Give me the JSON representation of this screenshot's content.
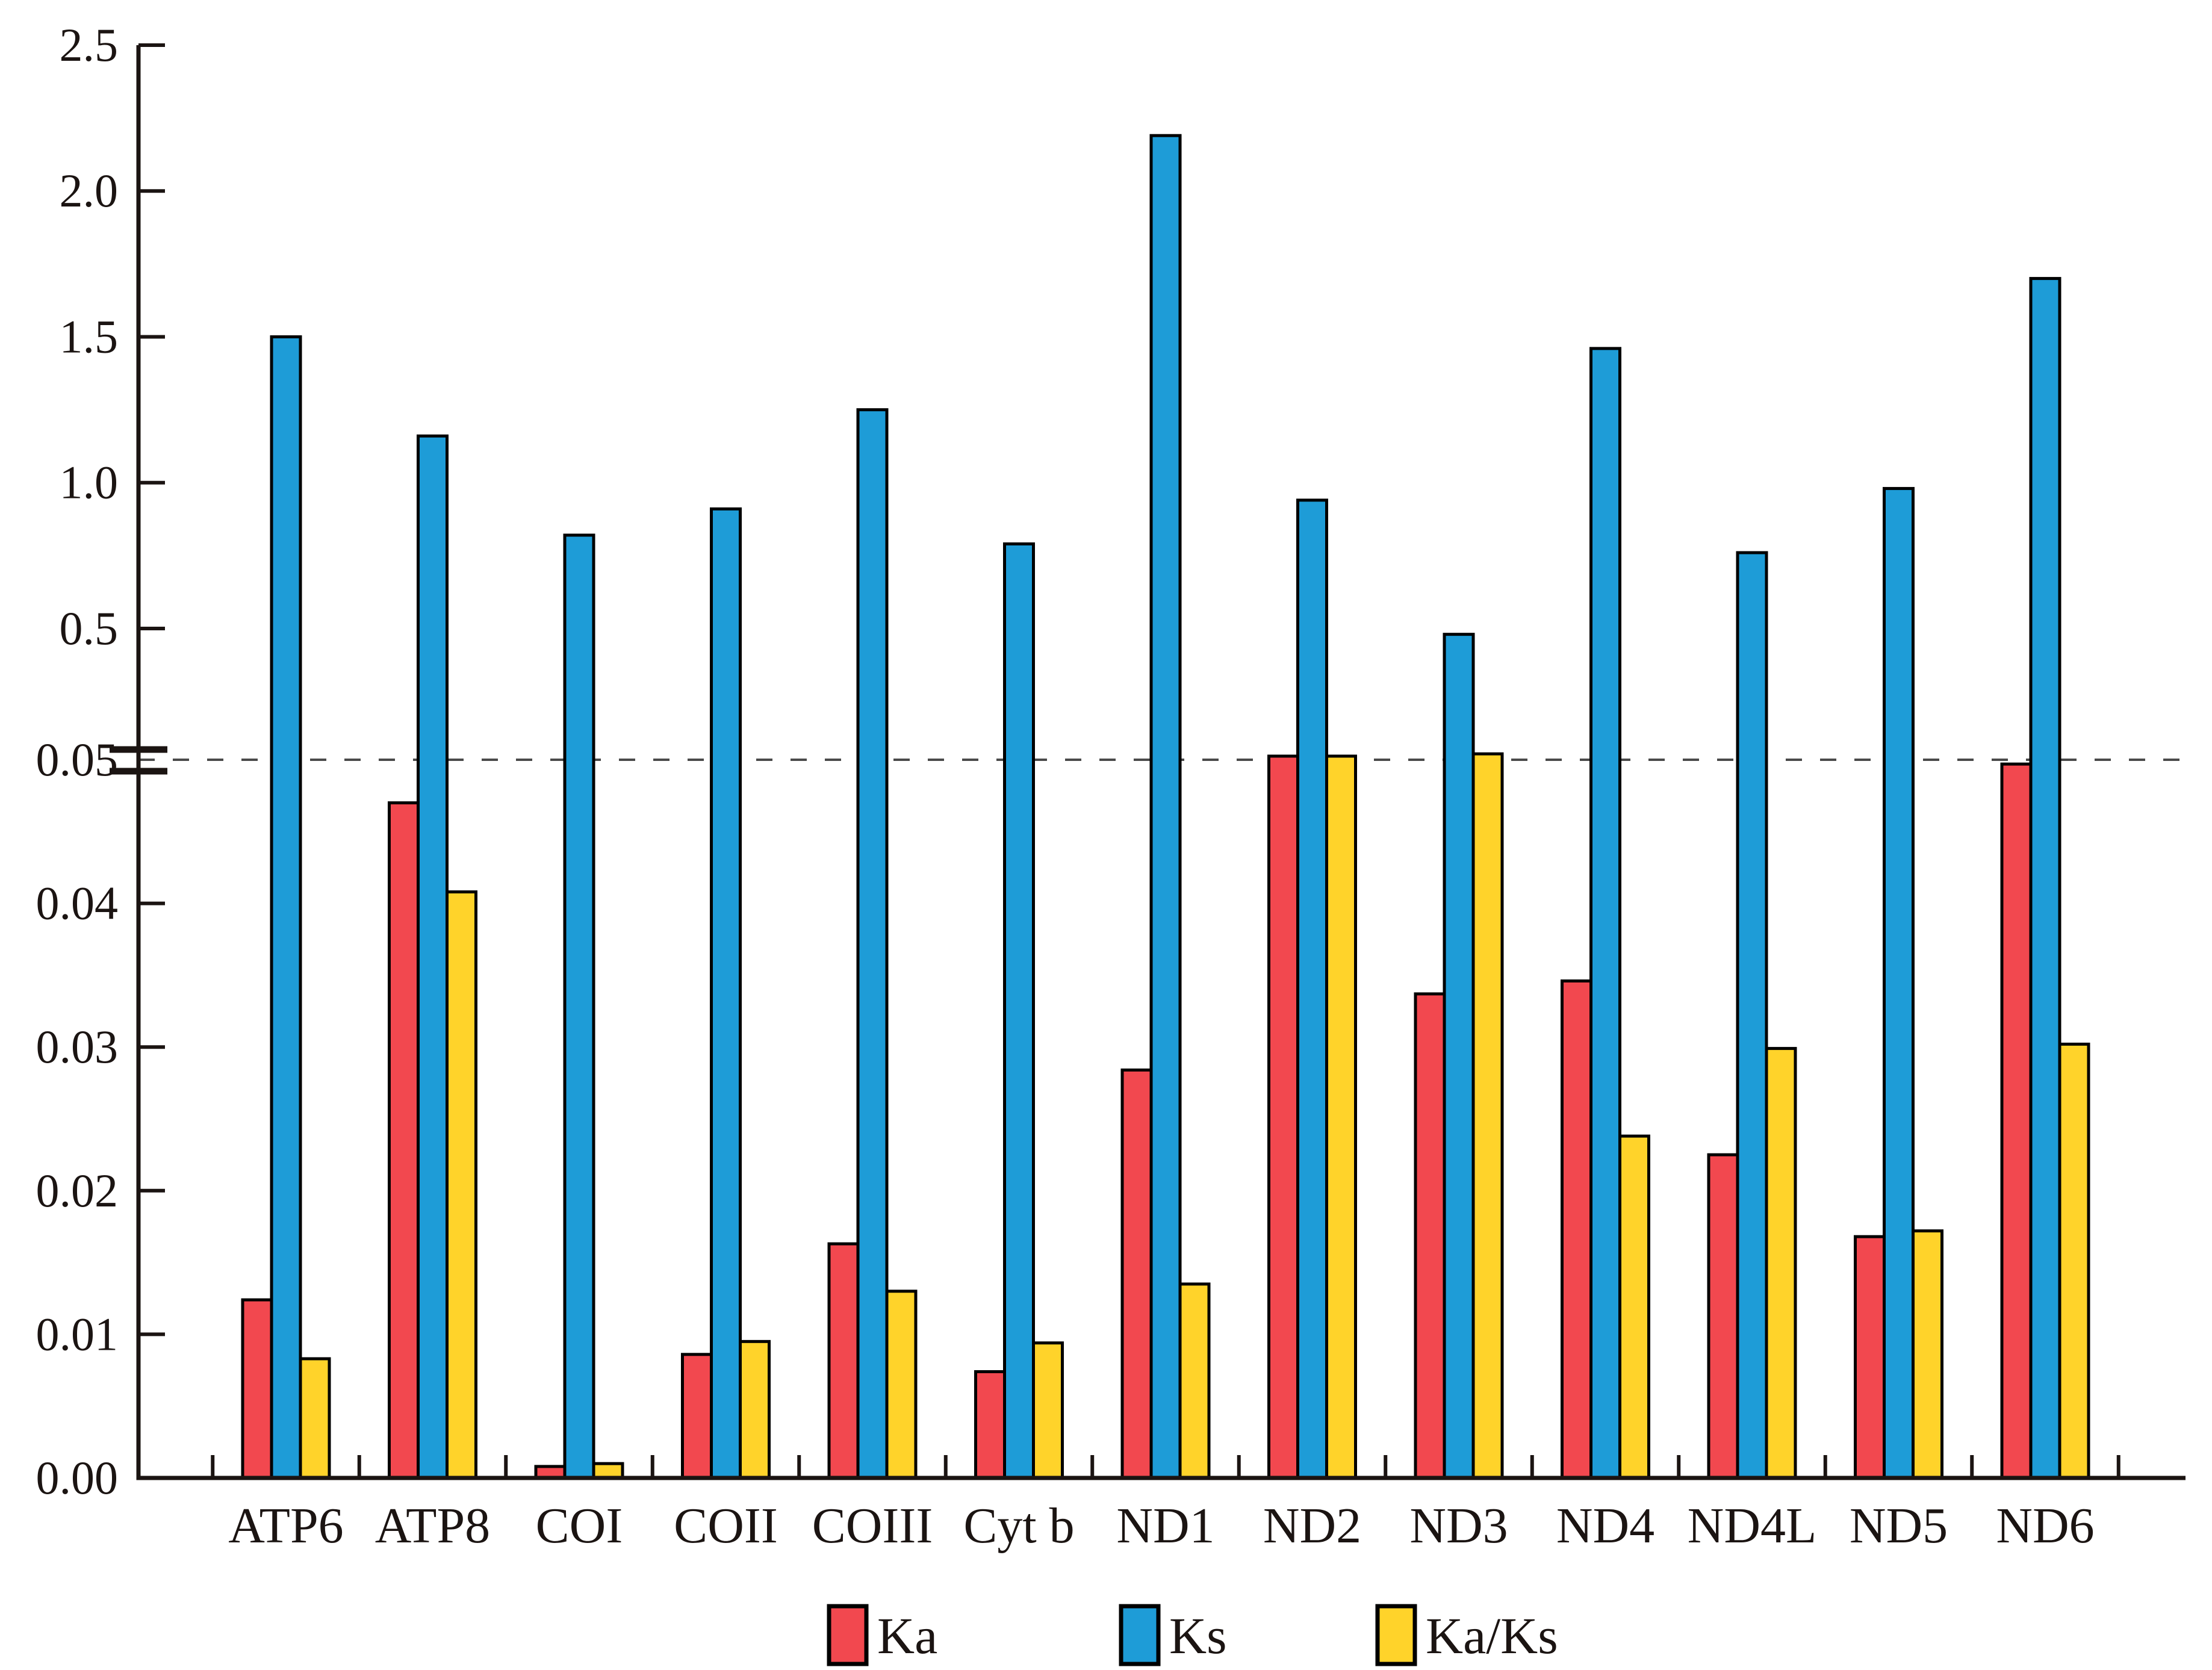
{
  "chart_data": {
    "type": "bar",
    "title": "",
    "xlabel": "",
    "ylabel": "",
    "categories": [
      "ATP6",
      "ATP8",
      "COI",
      "COII",
      "COIII",
      "Cyt b",
      "ND1",
      "ND2",
      "ND3",
      "ND4",
      "ND4L",
      "ND5",
      "ND6"
    ],
    "series": [
      {
        "name": "Ka",
        "color": "#F2484F",
        "values": [
          0.0124,
          0.047,
          0.0008,
          0.0086,
          0.0163,
          0.0074,
          0.0284,
          0.051,
          0.0337,
          0.0346,
          0.0225,
          0.0168,
          0.0497
        ]
      },
      {
        "name": "Ks",
        "color": "#1E9CD7",
        "values": [
          1.5,
          1.16,
          0.82,
          0.91,
          1.25,
          0.79,
          2.19,
          0.94,
          0.48,
          1.46,
          0.76,
          0.98,
          1.7
        ]
      },
      {
        "name": "Ka/Ks",
        "color": "#FFD32A",
        "values": [
          0.0083,
          0.0408,
          0.001,
          0.0095,
          0.013,
          0.0094,
          0.0135,
          0.0543,
          0.0702,
          0.0238,
          0.0299,
          0.0172,
          0.0302
        ]
      }
    ],
    "y_axis": {
      "broken": true,
      "break_value": 0.05,
      "upper_range": [
        0.05,
        2.5
      ],
      "lower_range": [
        0.0,
        0.05
      ],
      "upper_tick_labels": [
        "2.5",
        "2.0",
        "1.5",
        "1.0",
        "0.5",
        "0.05"
      ],
      "upper_tick_values": [
        2.5,
        2.0,
        1.5,
        1.0,
        0.5,
        0.05
      ],
      "lower_tick_labels": [
        "0.04",
        "0.03",
        "0.02",
        "0.01",
        "0.00"
      ],
      "lower_tick_values": [
        0.04,
        0.03,
        0.02,
        0.01,
        0.0
      ],
      "reference_line_value": 0.05,
      "reference_line_style": "dashed"
    },
    "grid": false,
    "legend": {
      "position": "bottom",
      "items": [
        {
          "label": "Ka",
          "color": "#F2484F"
        },
        {
          "label": "Ks",
          "color": "#1E9CD7"
        },
        {
          "label": "Ka/Ks",
          "color": "#FFD32A"
        }
      ]
    }
  },
  "colors": {
    "background": "#ffffff",
    "axis": "#1b1412",
    "bar_border": "#000000",
    "dashed_line": "#4a4a4a"
  }
}
